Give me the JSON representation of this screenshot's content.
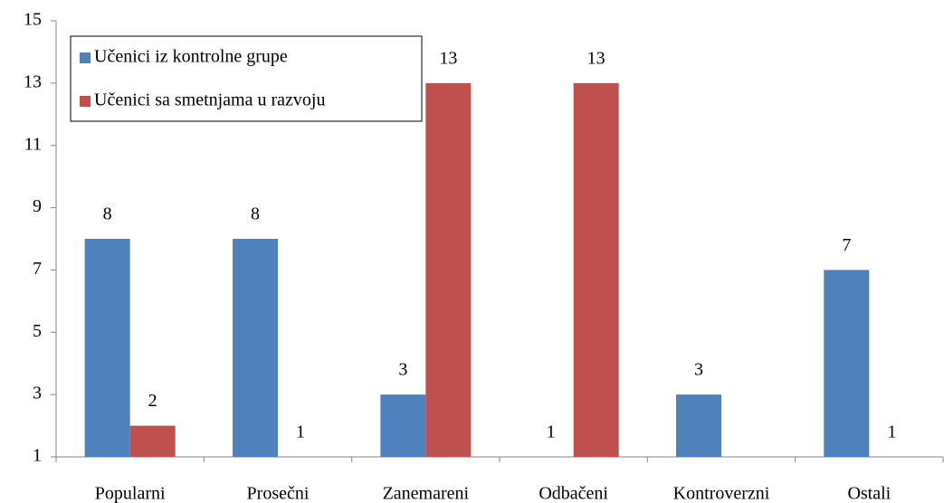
{
  "chart_data": {
    "type": "bar",
    "categories": [
      "Popularni",
      "Prosečni",
      "Zanemareni",
      "Odbačeni",
      "Kontroverzni",
      "Ostali"
    ],
    "series": [
      {
        "name": "Učenici iz kontrolne grupe",
        "color": "#4f81bd",
        "values": [
          8,
          8,
          3,
          1,
          3,
          7
        ]
      },
      {
        "name": "Učenici sa smetnjama u razvoju",
        "color": "#c0504d",
        "values": [
          2,
          1,
          13,
          13,
          null,
          1
        ]
      }
    ],
    "ylim": [
      1,
      15
    ],
    "yticks": [
      1,
      3,
      5,
      7,
      9,
      11,
      13,
      15
    ],
    "grid": false,
    "legend": "upper left"
  }
}
